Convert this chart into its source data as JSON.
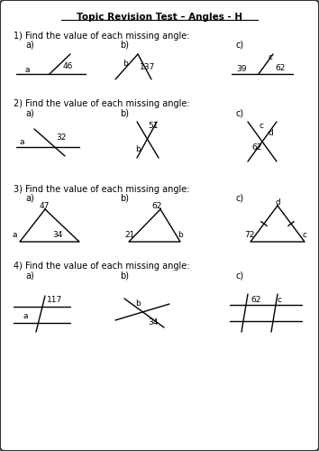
{
  "title": "Topic Revision Test – Angles - H",
  "bg_color": "#ffffff",
  "border_color": "#333333",
  "q1": "1) Find the value of each missing angle:",
  "q2": "2) Find the value of each missing angle:",
  "q3": "3) Find the value of each missing angle:",
  "q4": "4) Find the value of each missing angle:",
  "parts": [
    "a)",
    "b)",
    "c)"
  ]
}
